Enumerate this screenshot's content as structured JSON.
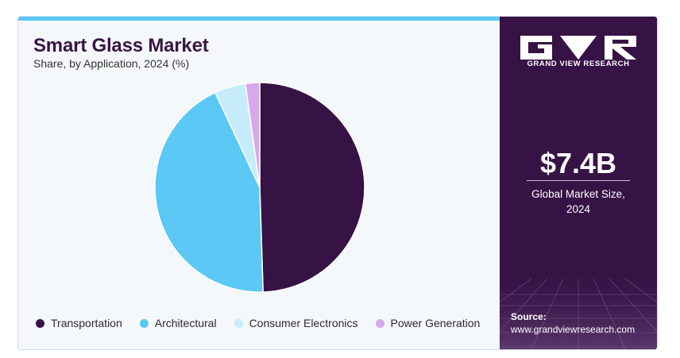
{
  "header": {
    "title": "Smart Glass Market",
    "subtitle": "Share, by Application, 2024 (%)"
  },
  "brand": {
    "logo_text": "GRAND VIEW RESEARCH",
    "logo_icon": "gvr-logo-icon"
  },
  "stat": {
    "value": "$7.4B",
    "label_line1": "Global Market Size,",
    "label_line2": "2024"
  },
  "source": {
    "label": "Source:",
    "url": "www.grandviewresearch.com"
  },
  "colors": {
    "brand_dark": "#371245",
    "accent": "#5bc8f5",
    "Transportation": "#371245",
    "Architectural": "#5bc8f5",
    "Consumer Electronics": "#c6ecfb",
    "Power Generation": "#d6a8ee"
  },
  "chart_data": {
    "type": "pie",
    "title": "Smart Glass Market",
    "subtitle": "Share, by Application, 2024 (%)",
    "categories": [
      "Transportation",
      "Architectural",
      "Consumer Electronics",
      "Power Generation"
    ],
    "values": [
      49.5,
      43.5,
      4.8,
      2.2
    ],
    "colors": [
      "#371245",
      "#5bc8f5",
      "#c6ecfb",
      "#d6a8ee"
    ],
    "legend_position": "bottom",
    "start_angle": "top, clockwise"
  }
}
